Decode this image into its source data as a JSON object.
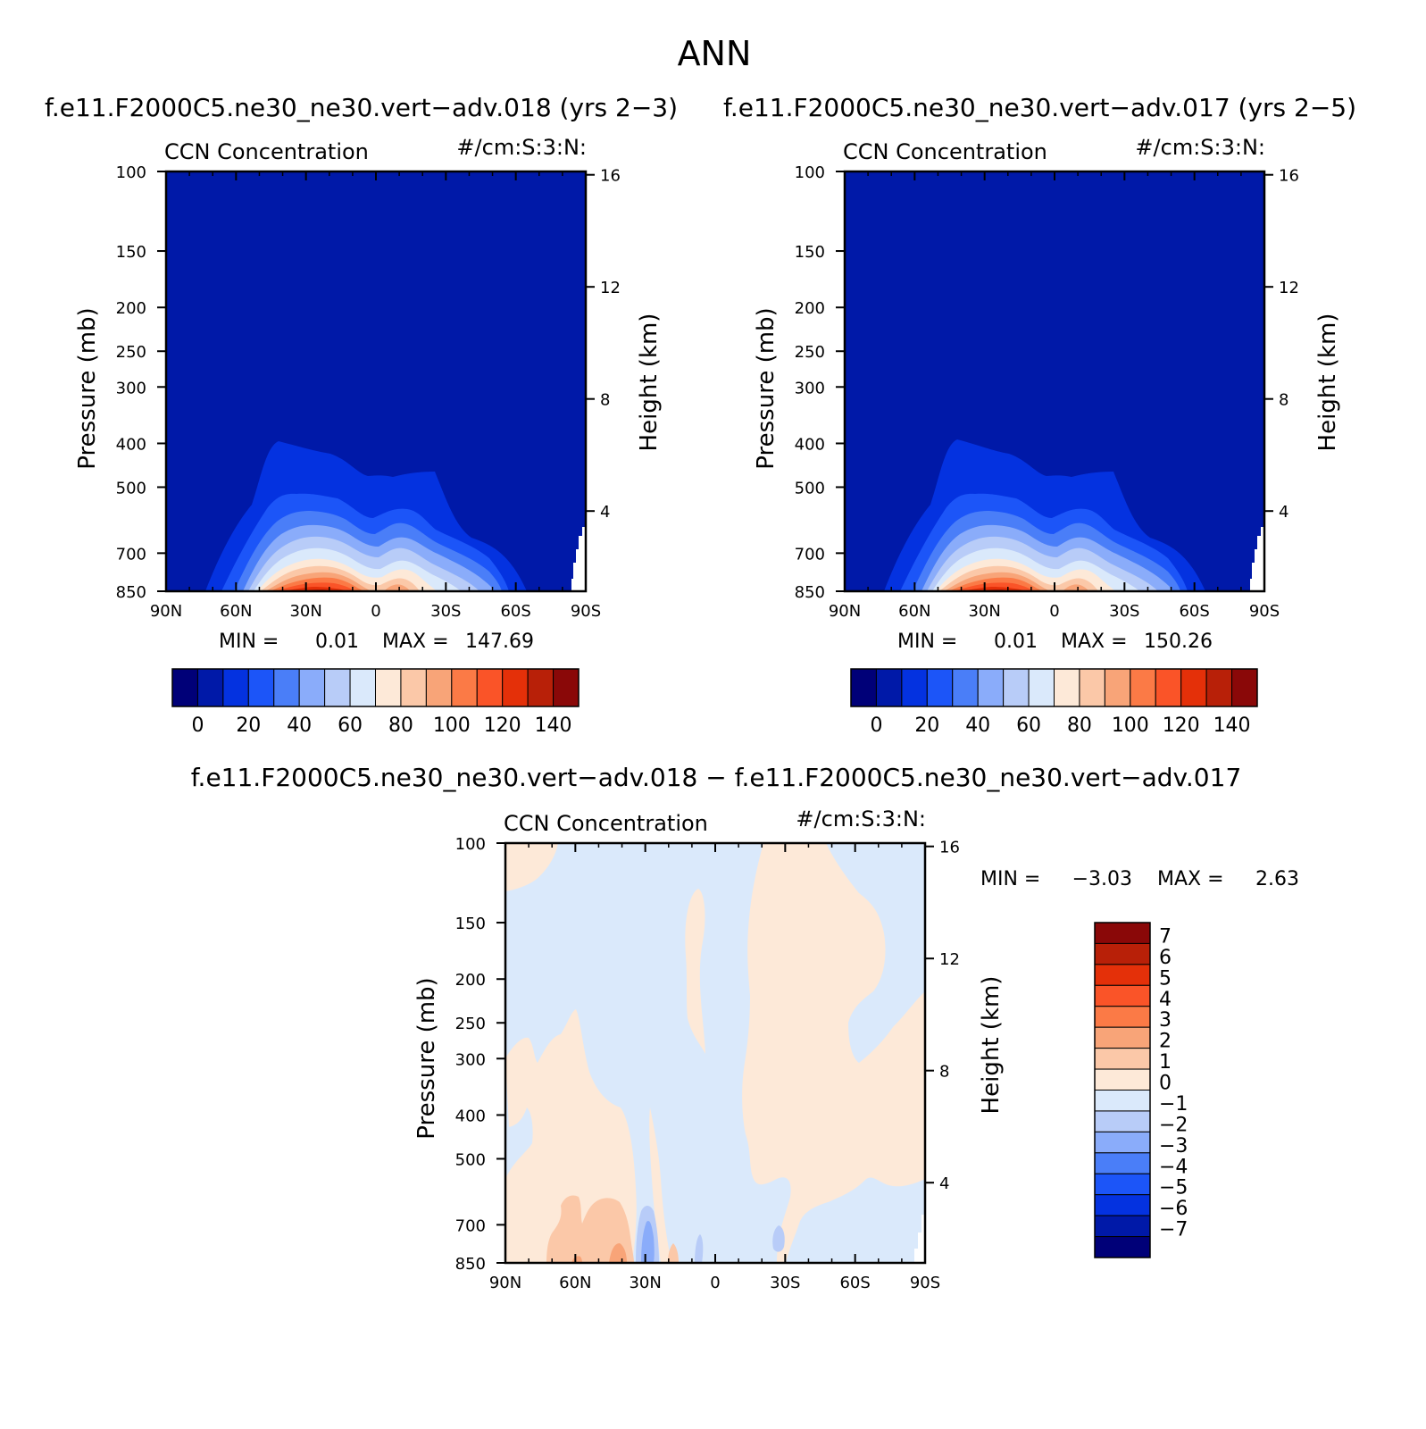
{
  "figure": {
    "main_title": "ANN",
    "diff_title": "f.e11.F2000C5.ne30_ne30.vert−adv.018  −  f.e11.F2000C5.ne30_ne30.vert−adv.017"
  },
  "chart_data": [
    {
      "type": "heatmap",
      "panel": "case-1",
      "title": "f.e11.F2000C5.ne30_ne30.vert−adv.018 (yrs 2−3)",
      "subtitle_left": "CCN Concentration",
      "subtitle_right": "#/cm:S:3:N:",
      "ylabel": "Pressure (mb)",
      "ylabel_right": "Height (km)",
      "xticks": [
        "90N",
        "60N",
        "30N",
        "0",
        "30S",
        "60S",
        "90S"
      ],
      "yticks": [
        "100",
        "150",
        "200",
        "250",
        "300",
        "400",
        "500",
        "700",
        "850"
      ],
      "yticks_right": [
        "16",
        "12",
        "8",
        "4"
      ],
      "ylim": [
        100,
        850
      ],
      "y_log": true,
      "min_label": "MIN =",
      "min_value": "0.01",
      "max_label": "MAX =",
      "max_value": "147.69",
      "colorbar_labels": [
        "0",
        "20",
        "40",
        "60",
        "80",
        "100",
        "120",
        "140"
      ]
    },
    {
      "type": "heatmap",
      "panel": "case-2",
      "title": "f.e11.F2000C5.ne30_ne30.vert−adv.017 (yrs 2−5)",
      "subtitle_left": "CCN Concentration",
      "subtitle_right": "#/cm:S:3:N:",
      "ylabel": "Pressure (mb)",
      "ylabel_right": "Height (km)",
      "xticks": [
        "90N",
        "60N",
        "30N",
        "0",
        "30S",
        "60S",
        "90S"
      ],
      "yticks": [
        "100",
        "150",
        "200",
        "250",
        "300",
        "400",
        "500",
        "700",
        "850"
      ],
      "yticks_right": [
        "16",
        "12",
        "8",
        "4"
      ],
      "ylim": [
        100,
        850
      ],
      "y_log": true,
      "min_label": "MIN =",
      "min_value": "0.01",
      "max_label": "MAX =",
      "max_value": "150.26",
      "colorbar_labels": [
        "0",
        "20",
        "40",
        "60",
        "80",
        "100",
        "120",
        "140"
      ]
    },
    {
      "type": "heatmap",
      "panel": "difference",
      "subtitle_left": "CCN Concentration",
      "subtitle_right": "#/cm:S:3:N:",
      "ylabel": "Pressure (mb)",
      "ylabel_right": "Height (km)",
      "xticks": [
        "90N",
        "60N",
        "30N",
        "0",
        "30S",
        "60S",
        "90S"
      ],
      "yticks": [
        "100",
        "150",
        "200",
        "250",
        "300",
        "400",
        "500",
        "700",
        "850"
      ],
      "yticks_right": [
        "16",
        "12",
        "8",
        "4"
      ],
      "ylim": [
        100,
        850
      ],
      "y_log": true,
      "min_label": "MIN =",
      "min_value": "−3.03",
      "max_label": "MAX =",
      "max_value": "2.63",
      "colorbar_labels": [
        "7",
        "6",
        "5",
        "4",
        "3",
        "2",
        "1",
        "0",
        "−1",
        "−2",
        "−3",
        "−4",
        "−5",
        "−6",
        "−7"
      ]
    }
  ],
  "colors": {
    "sequential": [
      "#000078",
      "#0019a8",
      "#0432e0",
      "#1c55f8",
      "#4a7ef8",
      "#8aacfa",
      "#b8ccf8",
      "#dae9fb",
      "#fde9d8",
      "#fbc8a8",
      "#f8a478",
      "#fb7a46",
      "#fa5428",
      "#e43009",
      "#b82008",
      "#8a0808"
    ],
    "diverging_top_to_bottom": [
      "#8a0808",
      "#b82008",
      "#e43009",
      "#fa5428",
      "#fb7a46",
      "#f8a478",
      "#fbc8a8",
      "#fde9d8",
      "#dae9fb",
      "#b8ccf8",
      "#8aacfa",
      "#4a7ef8",
      "#1c55f8",
      "#0432e0",
      "#0019a8",
      "#000078"
    ]
  }
}
